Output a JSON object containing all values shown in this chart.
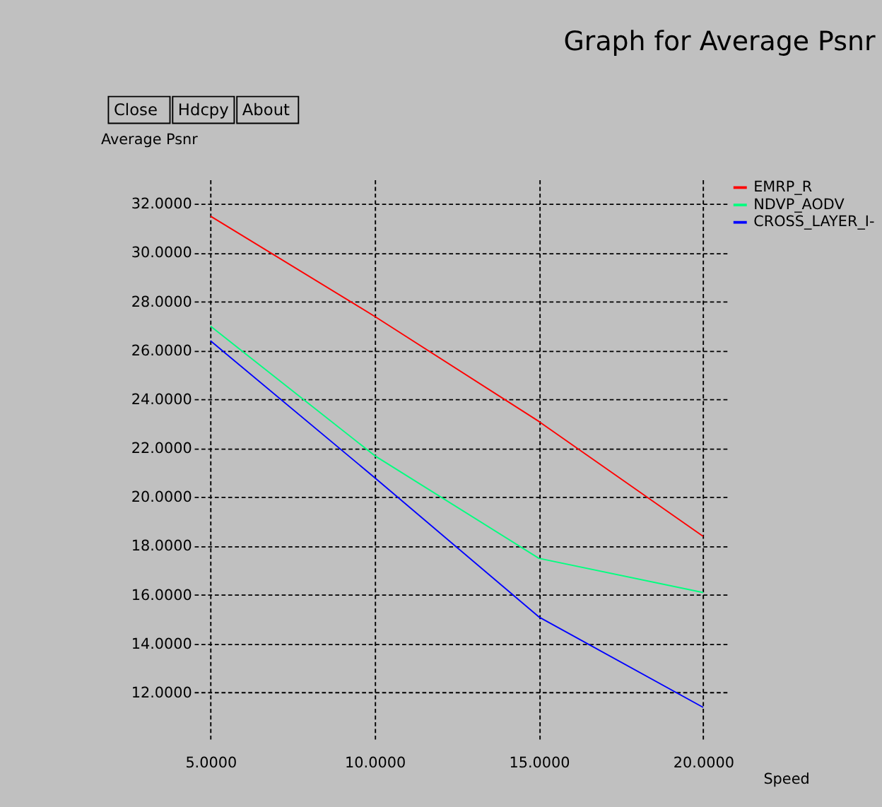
{
  "chart_data": {
    "type": "line",
    "title": "Graph for Average Psnr",
    "xlabel": "Speed",
    "ylabel": "Average Psnr",
    "annotations": [
      "Close",
      "Hdcpy",
      "About"
    ],
    "x": [
      5,
      10,
      15,
      20
    ],
    "series": [
      {
        "name": "EMRP_R",
        "color": "#ff0000",
        "values": [
          31.5,
          27.4,
          23.1,
          18.4
        ]
      },
      {
        "name": "NDVP_AODV",
        "color": "#00ff7f",
        "values": [
          27.0,
          21.7,
          17.5,
          16.1
        ]
      },
      {
        "name": "CROSS_LAYER_I-",
        "color": "#0000ff",
        "values": [
          26.4,
          20.8,
          15.1,
          11.4
        ]
      }
    ],
    "xlim": [
      4.5,
      20.8
    ],
    "ylim": [
      10,
      33
    ],
    "xticks": [
      {
        "value": 5,
        "label": "5.0000"
      },
      {
        "value": 10,
        "label": "10.0000"
      },
      {
        "value": 15,
        "label": "15.0000"
      },
      {
        "value": 20,
        "label": "20.0000"
      }
    ],
    "yticks": [
      {
        "value": 12,
        "label": "12.0000"
      },
      {
        "value": 14,
        "label": "14.0000"
      },
      {
        "value": 16,
        "label": "16.0000"
      },
      {
        "value": 18,
        "label": "18.0000"
      },
      {
        "value": 20,
        "label": "20.0000"
      },
      {
        "value": 22,
        "label": "22.0000"
      },
      {
        "value": 24,
        "label": "24.0000"
      },
      {
        "value": 26,
        "label": "26.0000"
      },
      {
        "value": 28,
        "label": "28.0000"
      },
      {
        "value": 30,
        "label": "30.0000"
      },
      {
        "value": 32,
        "label": "32.0000"
      }
    ],
    "grid": true,
    "legend": "top right",
    "marker": "none",
    "line_style": "solid"
  }
}
